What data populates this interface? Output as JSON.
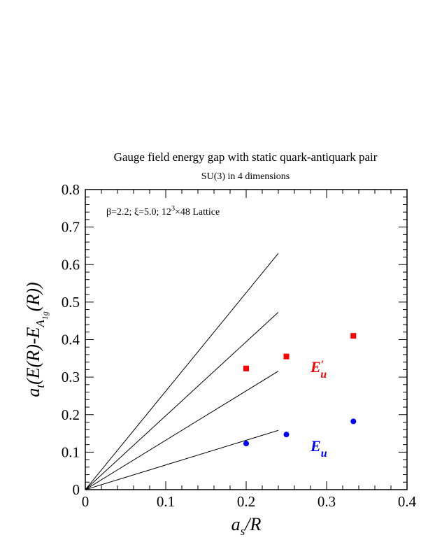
{
  "chart_data": {
    "type": "scatter",
    "title": "Gauge field energy gap with static quark-antiquark pair",
    "subtitle": "SU(3) in 4 dimensions",
    "annotation": "β=2.2; ξ=5.0; 12³×48 Lattice",
    "xlabel": "a_s/R",
    "ylabel": "a_t(E(R)-E_A1g(R))",
    "xlim": [
      0,
      0.4
    ],
    "ylim": [
      0,
      0.8
    ],
    "x_ticks": [
      0,
      0.1,
      0.2,
      0.3,
      0.4
    ],
    "y_ticks": [
      0,
      0.1,
      0.2,
      0.3,
      0.4,
      0.5,
      0.6,
      0.7,
      0.8
    ],
    "x_tick_labels": [
      "0",
      "0.1",
      "0.2",
      "0.3",
      "0.4"
    ],
    "y_tick_labels": [
      "0",
      "0.1",
      "0.2",
      "0.3",
      "0.4",
      "0.5",
      "0.6",
      "0.7",
      "0.8"
    ],
    "grid": false,
    "series": [
      {
        "name": "E′u",
        "label_main": "E",
        "label_prime": "′",
        "label_sub": "u",
        "marker": "square",
        "color": "#ff0000",
        "x": [
          0.2,
          0.25,
          0.3333
        ],
        "y": [
          0.323,
          0.355,
          0.41
        ]
      },
      {
        "name": "Eu",
        "label_main": "E",
        "label_sub": "u",
        "marker": "circle",
        "color": "#0000ff",
        "x": [
          0.2,
          0.25,
          0.3333
        ],
        "y": [
          0.123,
          0.147,
          0.182
        ]
      }
    ],
    "lines": [
      {
        "x": [
          0,
          0.24
        ],
        "y": [
          0,
          0.158
        ]
      },
      {
        "x": [
          0,
          0.24
        ],
        "y": [
          0,
          0.316
        ]
      },
      {
        "x": [
          0,
          0.24
        ],
        "y": [
          0,
          0.473
        ]
      },
      {
        "x": [
          0,
          0.24
        ],
        "y": [
          0,
          0.63
        ]
      }
    ]
  }
}
